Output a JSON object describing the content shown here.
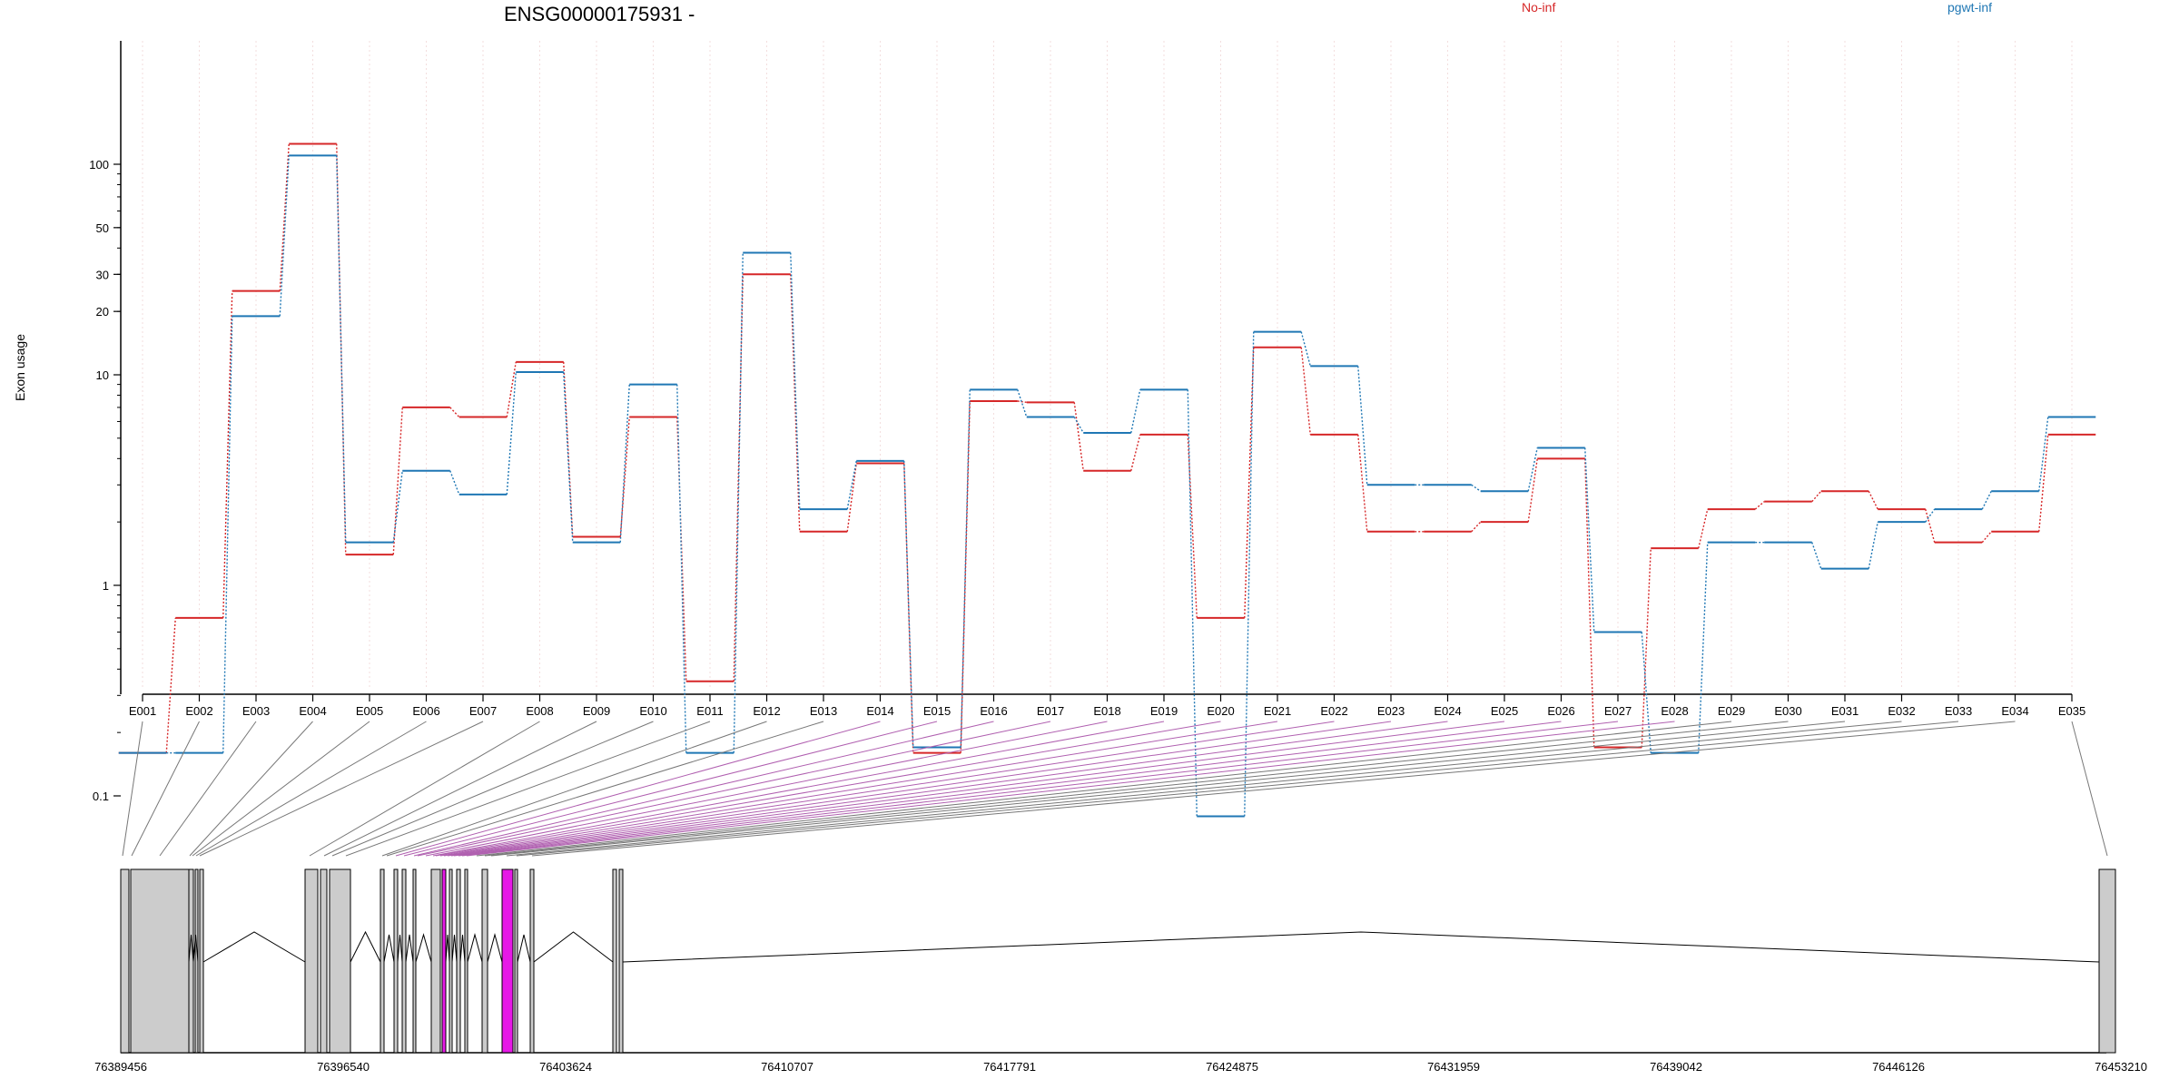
{
  "chart_data": {
    "type": "line",
    "title": "ENSG00000175931 -",
    "ylabel": "Exon usage",
    "yscale": "log",
    "ylim": [
      0.08,
      180
    ],
    "y_ticks": [
      0.1,
      1,
      10,
      20,
      30,
      50,
      100
    ],
    "y_tick_labels": [
      "0.1",
      "1",
      "10",
      "20",
      "30",
      "50",
      "100"
    ],
    "grid": "vertical dashed (one per exon)",
    "categories": [
      "E001",
      "E002",
      "E003",
      "E004",
      "E005",
      "E006",
      "E007",
      "E008",
      "E009",
      "E010",
      "E011",
      "E012",
      "E013",
      "E014",
      "E015",
      "E016",
      "E017",
      "E018",
      "E019",
      "E020",
      "E021",
      "E022",
      "E023",
      "E024",
      "E025",
      "E026",
      "E027",
      "E028",
      "E029",
      "E030",
      "E031",
      "E032",
      "E033",
      "E034",
      "E035"
    ],
    "series": [
      {
        "name": "No-inf",
        "color": "#d62728",
        "values": [
          0.16,
          0.7,
          25,
          125,
          1.4,
          7,
          6.3,
          11.5,
          1.7,
          6.3,
          0.35,
          30,
          1.8,
          3.8,
          0.16,
          7.5,
          7.4,
          3.5,
          5.2,
          0.7,
          13.5,
          5.2,
          1.8,
          1.8,
          2,
          4,
          0.17,
          1.5,
          2.3,
          2.5,
          2.8,
          2.3,
          1.6,
          1.8,
          5.2
        ]
      },
      {
        "name": "pgwt-inf",
        "color": "#1f77b4",
        "values": [
          0.16,
          0.16,
          19,
          110,
          1.6,
          3.5,
          2.7,
          10.3,
          1.6,
          9,
          0.16,
          38,
          2.3,
          3.9,
          0.17,
          8.5,
          6.3,
          5.3,
          8.5,
          0.06,
          16,
          11,
          3,
          3,
          2.8,
          4.5,
          0.6,
          0.16,
          1.6,
          1.6,
          1.2,
          2,
          2.3,
          2.8,
          6.3
        ]
      }
    ],
    "genome_coords": [
      "76389456",
      "76396540",
      "76403624",
      "76410707",
      "76417791",
      "76424875",
      "76431959",
      "76439042",
      "76446126",
      "76453210"
    ]
  }
}
